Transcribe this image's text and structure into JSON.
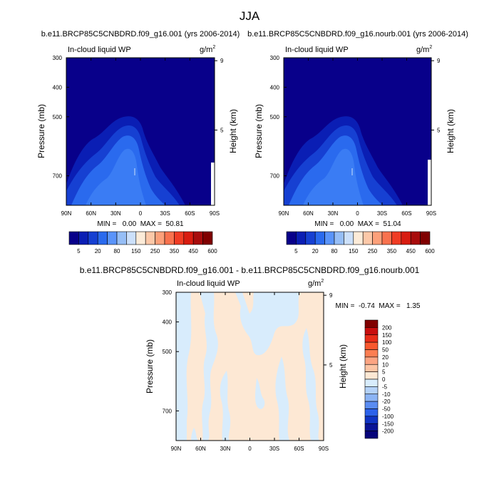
{
  "figure": {
    "title": "JJA"
  },
  "chart_data": [
    {
      "type": "heatmap",
      "title": "b.e11.BRCP85C5CNBDRD.f09_g16.001 (yrs 2006-2014)",
      "variable": "In-cloud liquid WP",
      "units": "g/m",
      "units_sup": "2",
      "xlabel": "",
      "ylabel": "Pressure (mb)",
      "ylabel_right": "Height (km)",
      "x_ticks": [
        "90N",
        "60N",
        "30N",
        "0",
        "30S",
        "60S",
        "90S"
      ],
      "y_ticks": [
        "300",
        "400",
        "500",
        "700"
      ],
      "y_right_ticks": [
        "9",
        "5"
      ],
      "stats": "MIN =   0.00  MAX =  50.81",
      "colorbar_labels": [
        "5",
        "20",
        "80",
        "150",
        "250",
        "350",
        "450",
        "600"
      ],
      "colorbar_colors": [
        "#08008a",
        "#0a1eb4",
        "#1640d2",
        "#2a6aee",
        "#5a94fa",
        "#96bef6",
        "#cce0fa",
        "#fcebd8",
        "#fcc8a8",
        "#fca07a",
        "#f8724e",
        "#f03c24",
        "#d81c10",
        "#a80c0c",
        "#800000"
      ]
    },
    {
      "type": "heatmap",
      "title": "b.e11.BRCP85C5CNBDRD.f09_g16.nourb.001 (yrs 2006-2014)",
      "variable": "In-cloud liquid WP",
      "units": "g/m",
      "units_sup": "2",
      "xlabel": "",
      "ylabel": "Pressure (mb)",
      "ylabel_right": "Height (km)",
      "x_ticks": [
        "90N",
        "60N",
        "30N",
        "0",
        "30S",
        "60S",
        "90S"
      ],
      "y_ticks": [
        "300",
        "400",
        "500",
        "700"
      ],
      "y_right_ticks": [
        "9",
        "5"
      ],
      "stats": "MIN =   0.00  MAX =  51.04",
      "colorbar_labels": [
        "5",
        "20",
        "80",
        "150",
        "250",
        "350",
        "450",
        "600"
      ]
    },
    {
      "type": "heatmap",
      "title": "b.e11.BRCP85C5CNBDRD.f09_g16.001 - b.e11.BRCP85C5CNBDRD.f09_g16.nourb.001",
      "variable": "In-cloud liquid WP",
      "units": "g/m",
      "units_sup": "2",
      "xlabel": "",
      "ylabel": "Pressure (mb)",
      "ylabel_right": "Height (km)",
      "x_ticks": [
        "90N",
        "60N",
        "30N",
        "0",
        "30S",
        "60S",
        "90S"
      ],
      "y_ticks": [
        "300",
        "400",
        "500",
        "700"
      ],
      "y_right_ticks": [
        "9",
        "5"
      ],
      "stats": "MIN =  -0.74  MAX =   1.35",
      "colorbar_labels": [
        "200",
        "150",
        "100",
        "50",
        "20",
        "10",
        "5",
        "0",
        "-5",
        "-10",
        "-20",
        "-50",
        "-100",
        "-150",
        "-200"
      ],
      "colorbar_colors": [
        "#800000",
        "#c80e0e",
        "#e82c18",
        "#f8582e",
        "#fc7e52",
        "#fca482",
        "#fcc4a4",
        "#fde8d4",
        "#d8ecfc",
        "#b4d2f8",
        "#8cb4f4",
        "#5a8cf2",
        "#2c62ea",
        "#1034c4",
        "#0a1496",
        "#06047a"
      ]
    }
  ]
}
